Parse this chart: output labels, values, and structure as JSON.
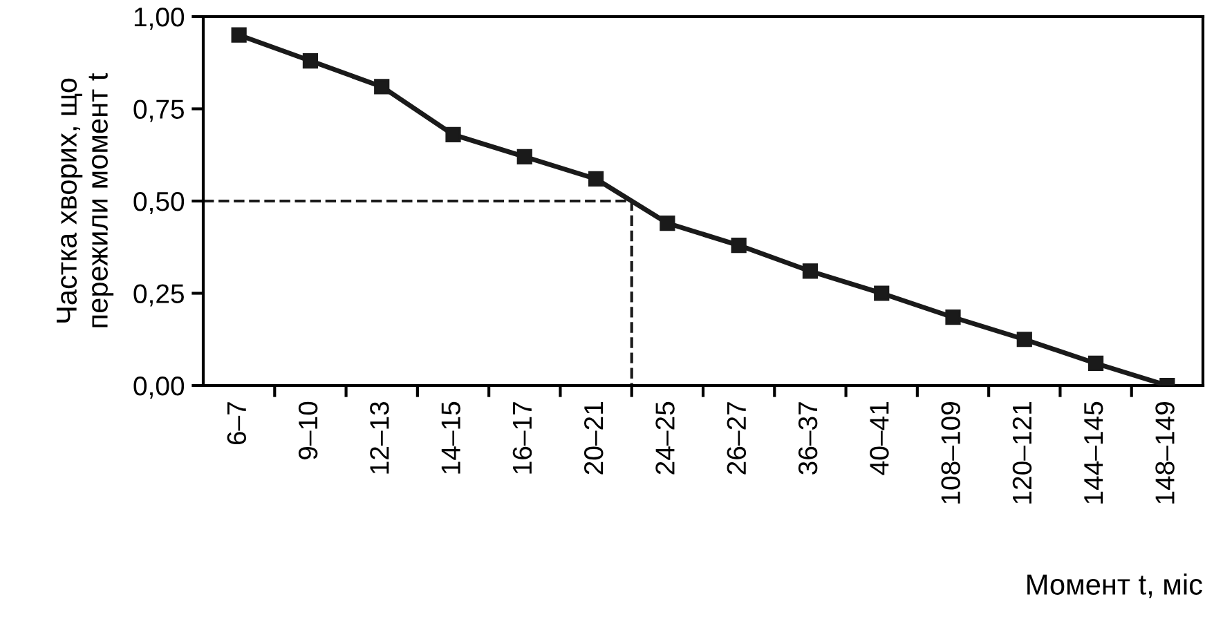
{
  "chart_data": {
    "type": "line",
    "xlabel": "Момент t, міс",
    "ylabel": "Частка хворих, що\nпережили момент t",
    "categories": [
      "6–7",
      "9–10",
      "12–13",
      "14–15",
      "16–17",
      "20–21",
      "24–25",
      "26–27",
      "36–37",
      "40–41",
      "108–109",
      "120–121",
      "144–145",
      "148–149"
    ],
    "series": [
      {
        "color": "#1a1a1a",
        "values": [
          0.95,
          0.88,
          0.81,
          0.68,
          0.62,
          0.56,
          0.44,
          0.38,
          0.31,
          0.25,
          0.185,
          0.125,
          0.06,
          0.0
        ]
      }
    ],
    "ylim": [
      0,
      1
    ],
    "yticks": [
      {
        "value": 0,
        "label": "0,00"
      },
      {
        "value": 0.25,
        "label": "0,25"
      },
      {
        "value": 0.5,
        "label": "0,50"
      },
      {
        "value": 0.75,
        "label": "0,75"
      },
      {
        "value": 1,
        "label": "1,00"
      }
    ],
    "marker": "square",
    "line_style": "solid",
    "grid": false,
    "legend": false,
    "ref_lines": [
      {
        "axis": "y",
        "value": 0.5,
        "line_style": "dashed",
        "color": "#1a1a1a"
      }
    ]
  }
}
